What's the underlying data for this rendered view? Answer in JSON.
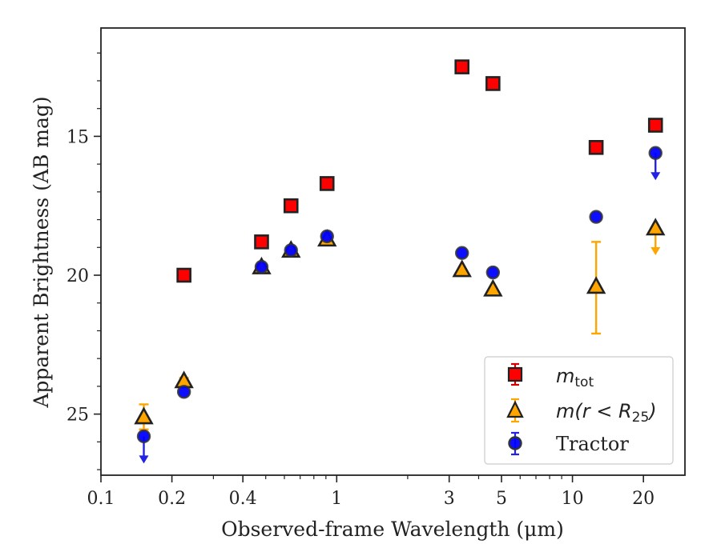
{
  "chart_data": {
    "type": "scatter",
    "title": "",
    "xlabel": "Observed-frame Wavelength (μm)",
    "ylabel": "Apparent Brightness (AB mag)",
    "xscale": "log",
    "xlim": [
      0.1,
      30
    ],
    "ylim": [
      27.2,
      11.1
    ],
    "y_inverted": true,
    "x_ticks": [
      {
        "value": 0.1,
        "label": "0.1"
      },
      {
        "value": 0.2,
        "label": "0.2"
      },
      {
        "value": 0.4,
        "label": "0.4"
      },
      {
        "value": 1,
        "label": "1"
      },
      {
        "value": 3,
        "label": "3"
      },
      {
        "value": 5,
        "label": "5"
      },
      {
        "value": 10,
        "label": "10"
      },
      {
        "value": 20,
        "label": "20"
      }
    ],
    "y_ticks": [
      {
        "value": 15,
        "label": "15"
      },
      {
        "value": 20,
        "label": "20"
      },
      {
        "value": 25,
        "label": "25"
      }
    ],
    "grid": false,
    "legend_position": "lower-right",
    "series": [
      {
        "name": "m_tot",
        "marker": "square",
        "color": "#ff0000",
        "errorbar_color": "#d40000",
        "points": [
          {
            "x": 0.225,
            "y": 20.0
          },
          {
            "x": 0.48,
            "y": 18.8
          },
          {
            "x": 0.64,
            "y": 17.5
          },
          {
            "x": 0.91,
            "y": 16.7
          },
          {
            "x": 3.4,
            "y": 12.5
          },
          {
            "x": 4.6,
            "y": 13.1
          },
          {
            "x": 12.6,
            "y": 15.4
          },
          {
            "x": 22.5,
            "y": 14.6
          }
        ]
      },
      {
        "name": "m(r < R25)",
        "marker": "triangle",
        "color": "#ffa500",
        "errorbar_color": "#ffa500",
        "points": [
          {
            "x": 0.152,
            "y": 25.1,
            "err": 0.45
          },
          {
            "x": 0.225,
            "y": 23.8,
            "err": 0.1
          },
          {
            "x": 0.48,
            "y": 19.7
          },
          {
            "x": 0.64,
            "y": 19.1
          },
          {
            "x": 0.91,
            "y": 18.7
          },
          {
            "x": 3.4,
            "y": 19.8
          },
          {
            "x": 4.6,
            "y": 20.5
          },
          {
            "x": 12.6,
            "y": 20.4,
            "err_low": 1.6,
            "err_high": 1.7
          },
          {
            "x": 22.5,
            "y": 18.3,
            "upper_limit": true
          }
        ]
      },
      {
        "name": "Tractor",
        "marker": "circle",
        "color": "#0000ff",
        "errorbar_color": "#2222e6",
        "points": [
          {
            "x": 0.152,
            "y": 25.8,
            "upper_limit": true
          },
          {
            "x": 0.225,
            "y": 24.2
          },
          {
            "x": 0.48,
            "y": 19.7
          },
          {
            "x": 0.64,
            "y": 19.1
          },
          {
            "x": 0.91,
            "y": 18.6
          },
          {
            "x": 3.4,
            "y": 19.2
          },
          {
            "x": 4.6,
            "y": 19.9
          },
          {
            "x": 12.6,
            "y": 17.9
          },
          {
            "x": 22.5,
            "y": 15.6,
            "upper_limit": true
          }
        ]
      }
    ],
    "legend": {
      "entries": [
        {
          "label_base": "m",
          "label_sub": "tot"
        },
        {
          "label_pre": "m(r < R",
          "label_sub": "25",
          "label_post": ")"
        },
        {
          "label": "Tractor"
        }
      ]
    }
  }
}
